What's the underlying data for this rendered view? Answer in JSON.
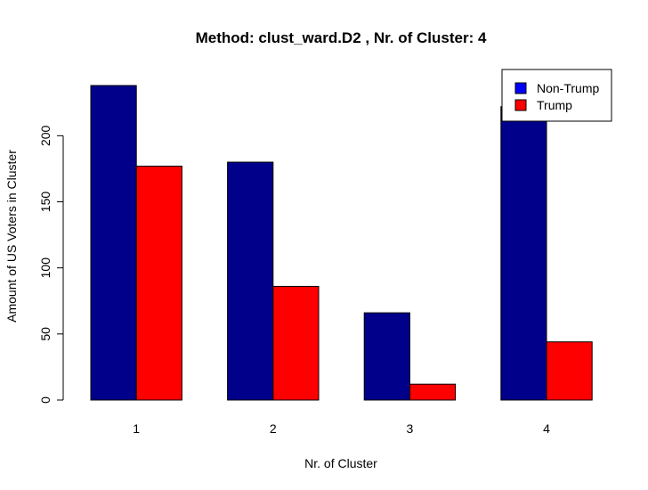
{
  "chart_data": {
    "type": "bar",
    "title": "Method: clust_ward.D2 , Nr. of Cluster: 4",
    "xlabel": "Nr. of Cluster",
    "ylabel": "Amount of US Voters in Cluster",
    "categories": [
      "1",
      "2",
      "3",
      "4"
    ],
    "series": [
      {
        "name": "Non-Trump",
        "values": [
          238,
          180,
          66,
          222
        ],
        "color": "#00008B"
      },
      {
        "name": "Trump",
        "values": [
          177,
          86,
          12,
          44
        ],
        "color": "#FF0000"
      }
    ],
    "yticks": [
      0,
      50,
      100,
      150,
      200
    ],
    "ylim": [
      0,
      238
    ],
    "legend_position": "top-right",
    "legend_swatch_colors": [
      "#0000FF",
      "#FF0000"
    ],
    "grid": false
  }
}
